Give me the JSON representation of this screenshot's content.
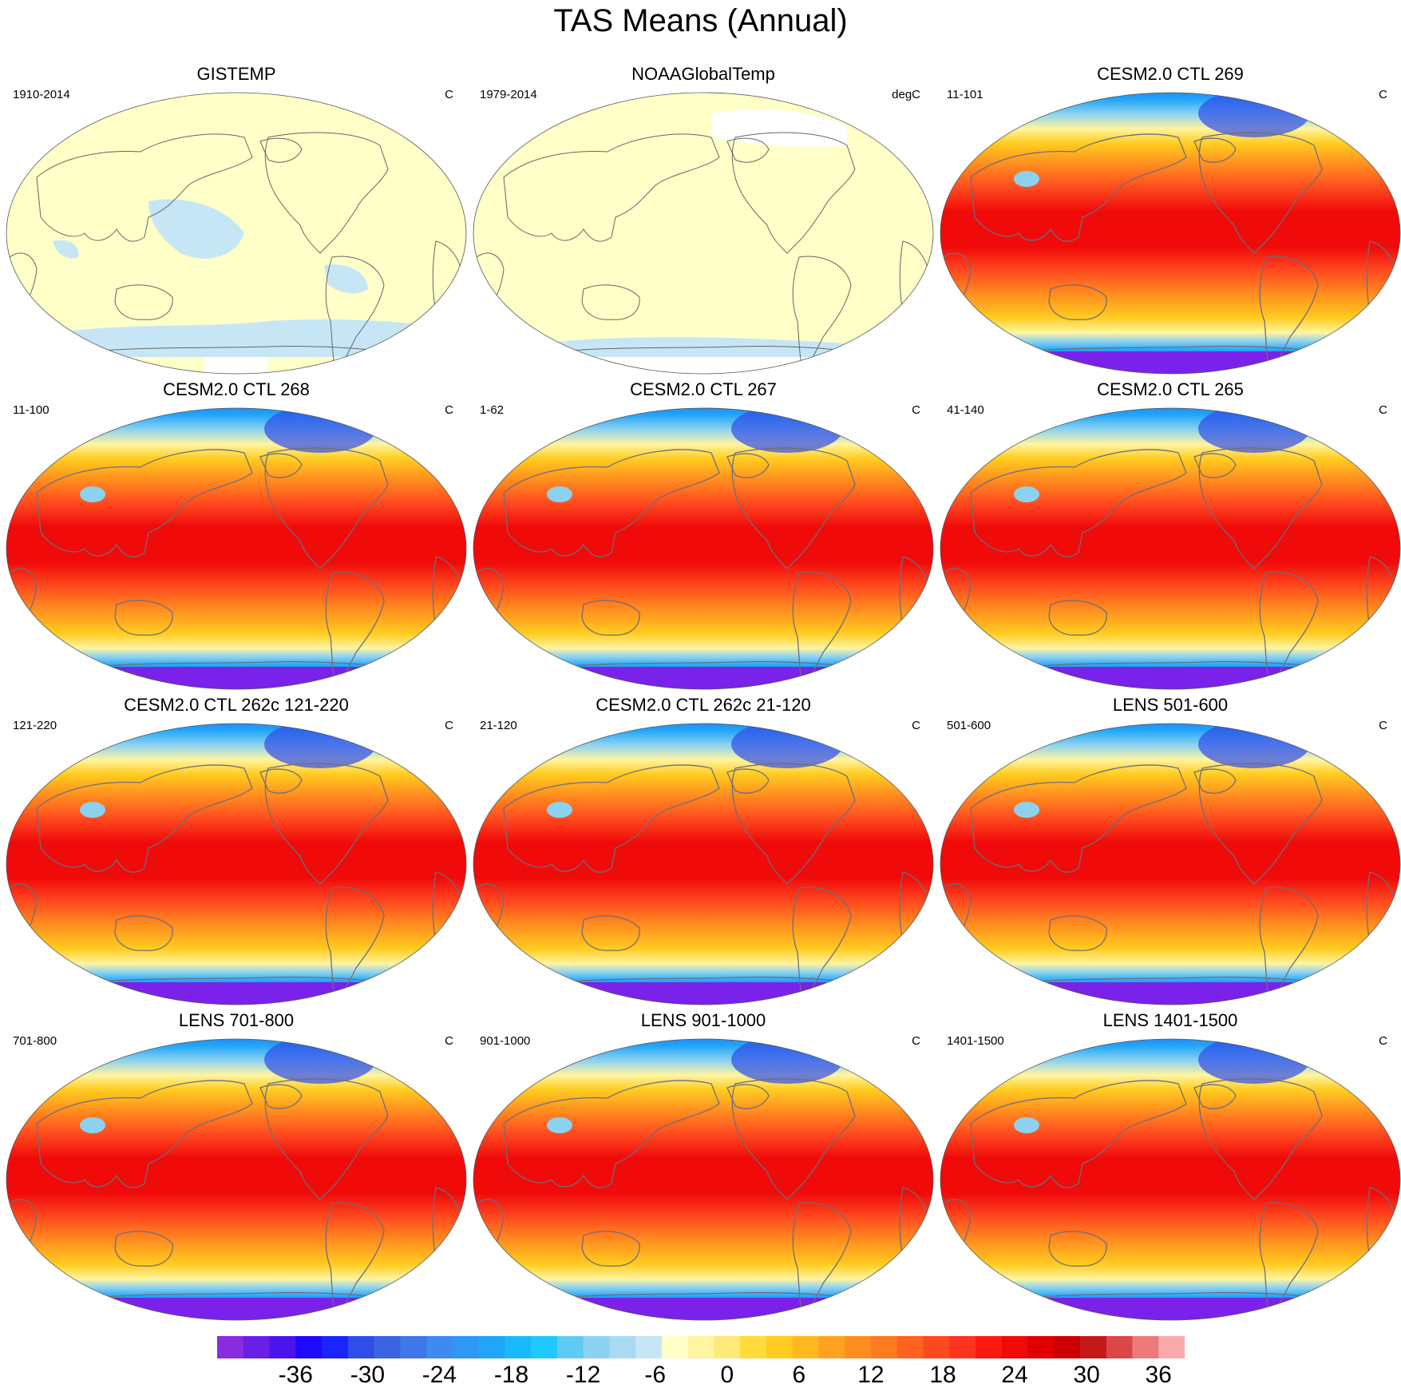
{
  "title": "TAS Means (Annual)",
  "panels": [
    {
      "title": "GISTEMP",
      "period": "1910-2014",
      "units": "C",
      "style": "obs"
    },
    {
      "title": "NOAAGlobalTemp",
      "period": "1979-2014",
      "units": "degC",
      "style": "obs2"
    },
    {
      "title": "CESM2.0 CTL 269",
      "period": "11-101",
      "units": "C",
      "style": "model"
    },
    {
      "title": "CESM2.0 CTL 268",
      "period": "11-100",
      "units": "C",
      "style": "model"
    },
    {
      "title": "CESM2.0 CTL 267",
      "period": "1-62",
      "units": "C",
      "style": "model"
    },
    {
      "title": "CESM2.0 CTL 265",
      "period": "41-140",
      "units": "C",
      "style": "model"
    },
    {
      "title": "CESM2.0 CTL 262c 121-220",
      "period": "121-220",
      "units": "C",
      "style": "model"
    },
    {
      "title": "CESM2.0 CTL 262c 21-120",
      "period": "21-120",
      "units": "C",
      "style": "model"
    },
    {
      "title": "LENS 501-600",
      "period": "501-600",
      "units": "C",
      "style": "model"
    },
    {
      "title": "LENS 701-800",
      "period": "701-800",
      "units": "C",
      "style": "model"
    },
    {
      "title": "LENS 901-1000",
      "period": "901-1000",
      "units": "C",
      "style": "model"
    },
    {
      "title": "LENS 1401-1500",
      "period": "1401-1500",
      "units": "C",
      "style": "model"
    }
  ],
  "colorbar": {
    "tick_labels": [
      "-36",
      "-30",
      "-24",
      "-18",
      "-12",
      "-6",
      "0",
      "6",
      "12",
      "18",
      "24",
      "30",
      "36"
    ],
    "colors": [
      "#8a2be2",
      "#6a1fe6",
      "#4b14ee",
      "#1e0aff",
      "#1a24ff",
      "#2f4de8",
      "#3a63e4",
      "#3f76ea",
      "#3f8af0",
      "#2f97f6",
      "#1fa5fa",
      "#1ab8fc",
      "#1fc8fd",
      "#5fcbf2",
      "#8cd2f0",
      "#a8dbf2",
      "#c6e6f5",
      "#ffffc8",
      "#fff4a0",
      "#ffe97a",
      "#ffdc3c",
      "#ffcc1f",
      "#ffb81f",
      "#ffa21f",
      "#ff8e1f",
      "#ff7b1f",
      "#ff631f",
      "#ff4a1f",
      "#ff331f",
      "#ff1a10",
      "#f00a0a",
      "#e00000",
      "#cc0000",
      "#c41818",
      "#dc4646",
      "#ec7a7a",
      "#f8aaaa"
    ]
  }
}
